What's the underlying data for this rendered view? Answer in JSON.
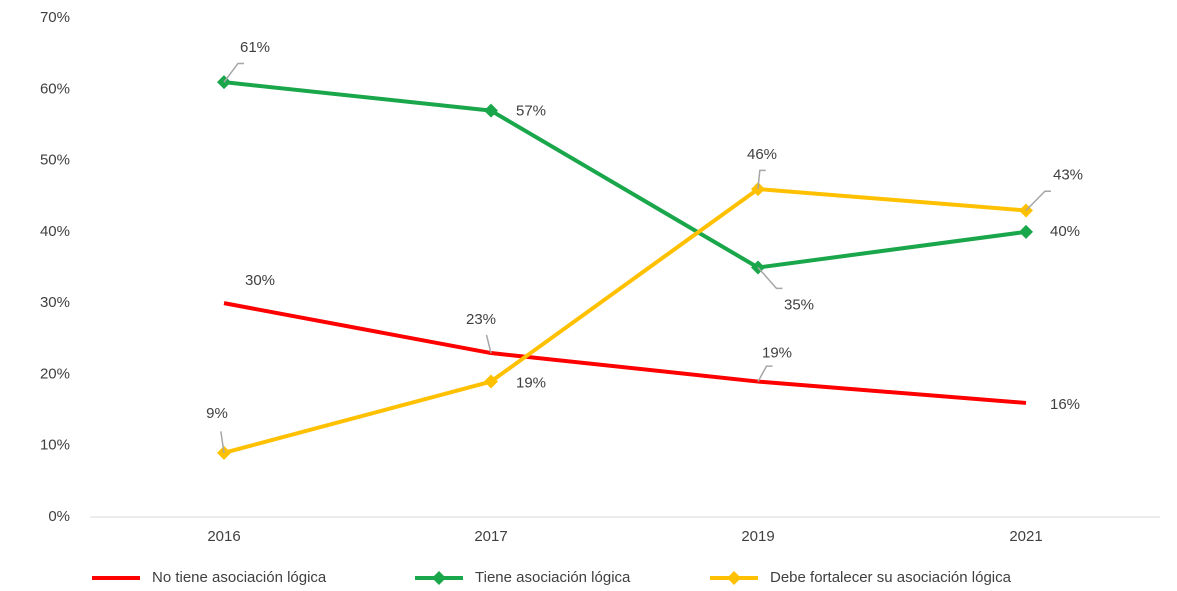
{
  "chart_data": {
    "type": "line",
    "categories": [
      "2016",
      "2017",
      "2019",
      "2021"
    ],
    "series": [
      {
        "name": "No tiene asociación lógica",
        "color": "#ff0000",
        "markers": false,
        "values": [
          30,
          23,
          19,
          16
        ],
        "value_labels": [
          "30%",
          "23%",
          "19%",
          "16%"
        ]
      },
      {
        "name": "Tiene asociación lógica",
        "color": "#1aa64a",
        "markers": true,
        "values": [
          61,
          57,
          35,
          40
        ],
        "value_labels": [
          "61%",
          "57%",
          "35%",
          "40%"
        ]
      },
      {
        "name": "Debe fortalecer su asociación lógica",
        "color": "#ffc000",
        "markers": true,
        "values": [
          9,
          19,
          46,
          43
        ],
        "value_labels": [
          "9%",
          "19%",
          "46%",
          "43%"
        ]
      }
    ],
    "ylim": [
      0,
      70
    ],
    "yticks": [
      {
        "value": 0,
        "label": "0%"
      },
      {
        "value": 10,
        "label": "10%"
      },
      {
        "value": 20,
        "label": "20%"
      },
      {
        "value": 30,
        "label": "30%"
      },
      {
        "value": 40,
        "label": "40%"
      },
      {
        "value": 50,
        "label": "50%"
      },
      {
        "value": 60,
        "label": "60%"
      },
      {
        "value": 70,
        "label": "70%"
      }
    ],
    "grid": false,
    "legend": "bottom"
  }
}
